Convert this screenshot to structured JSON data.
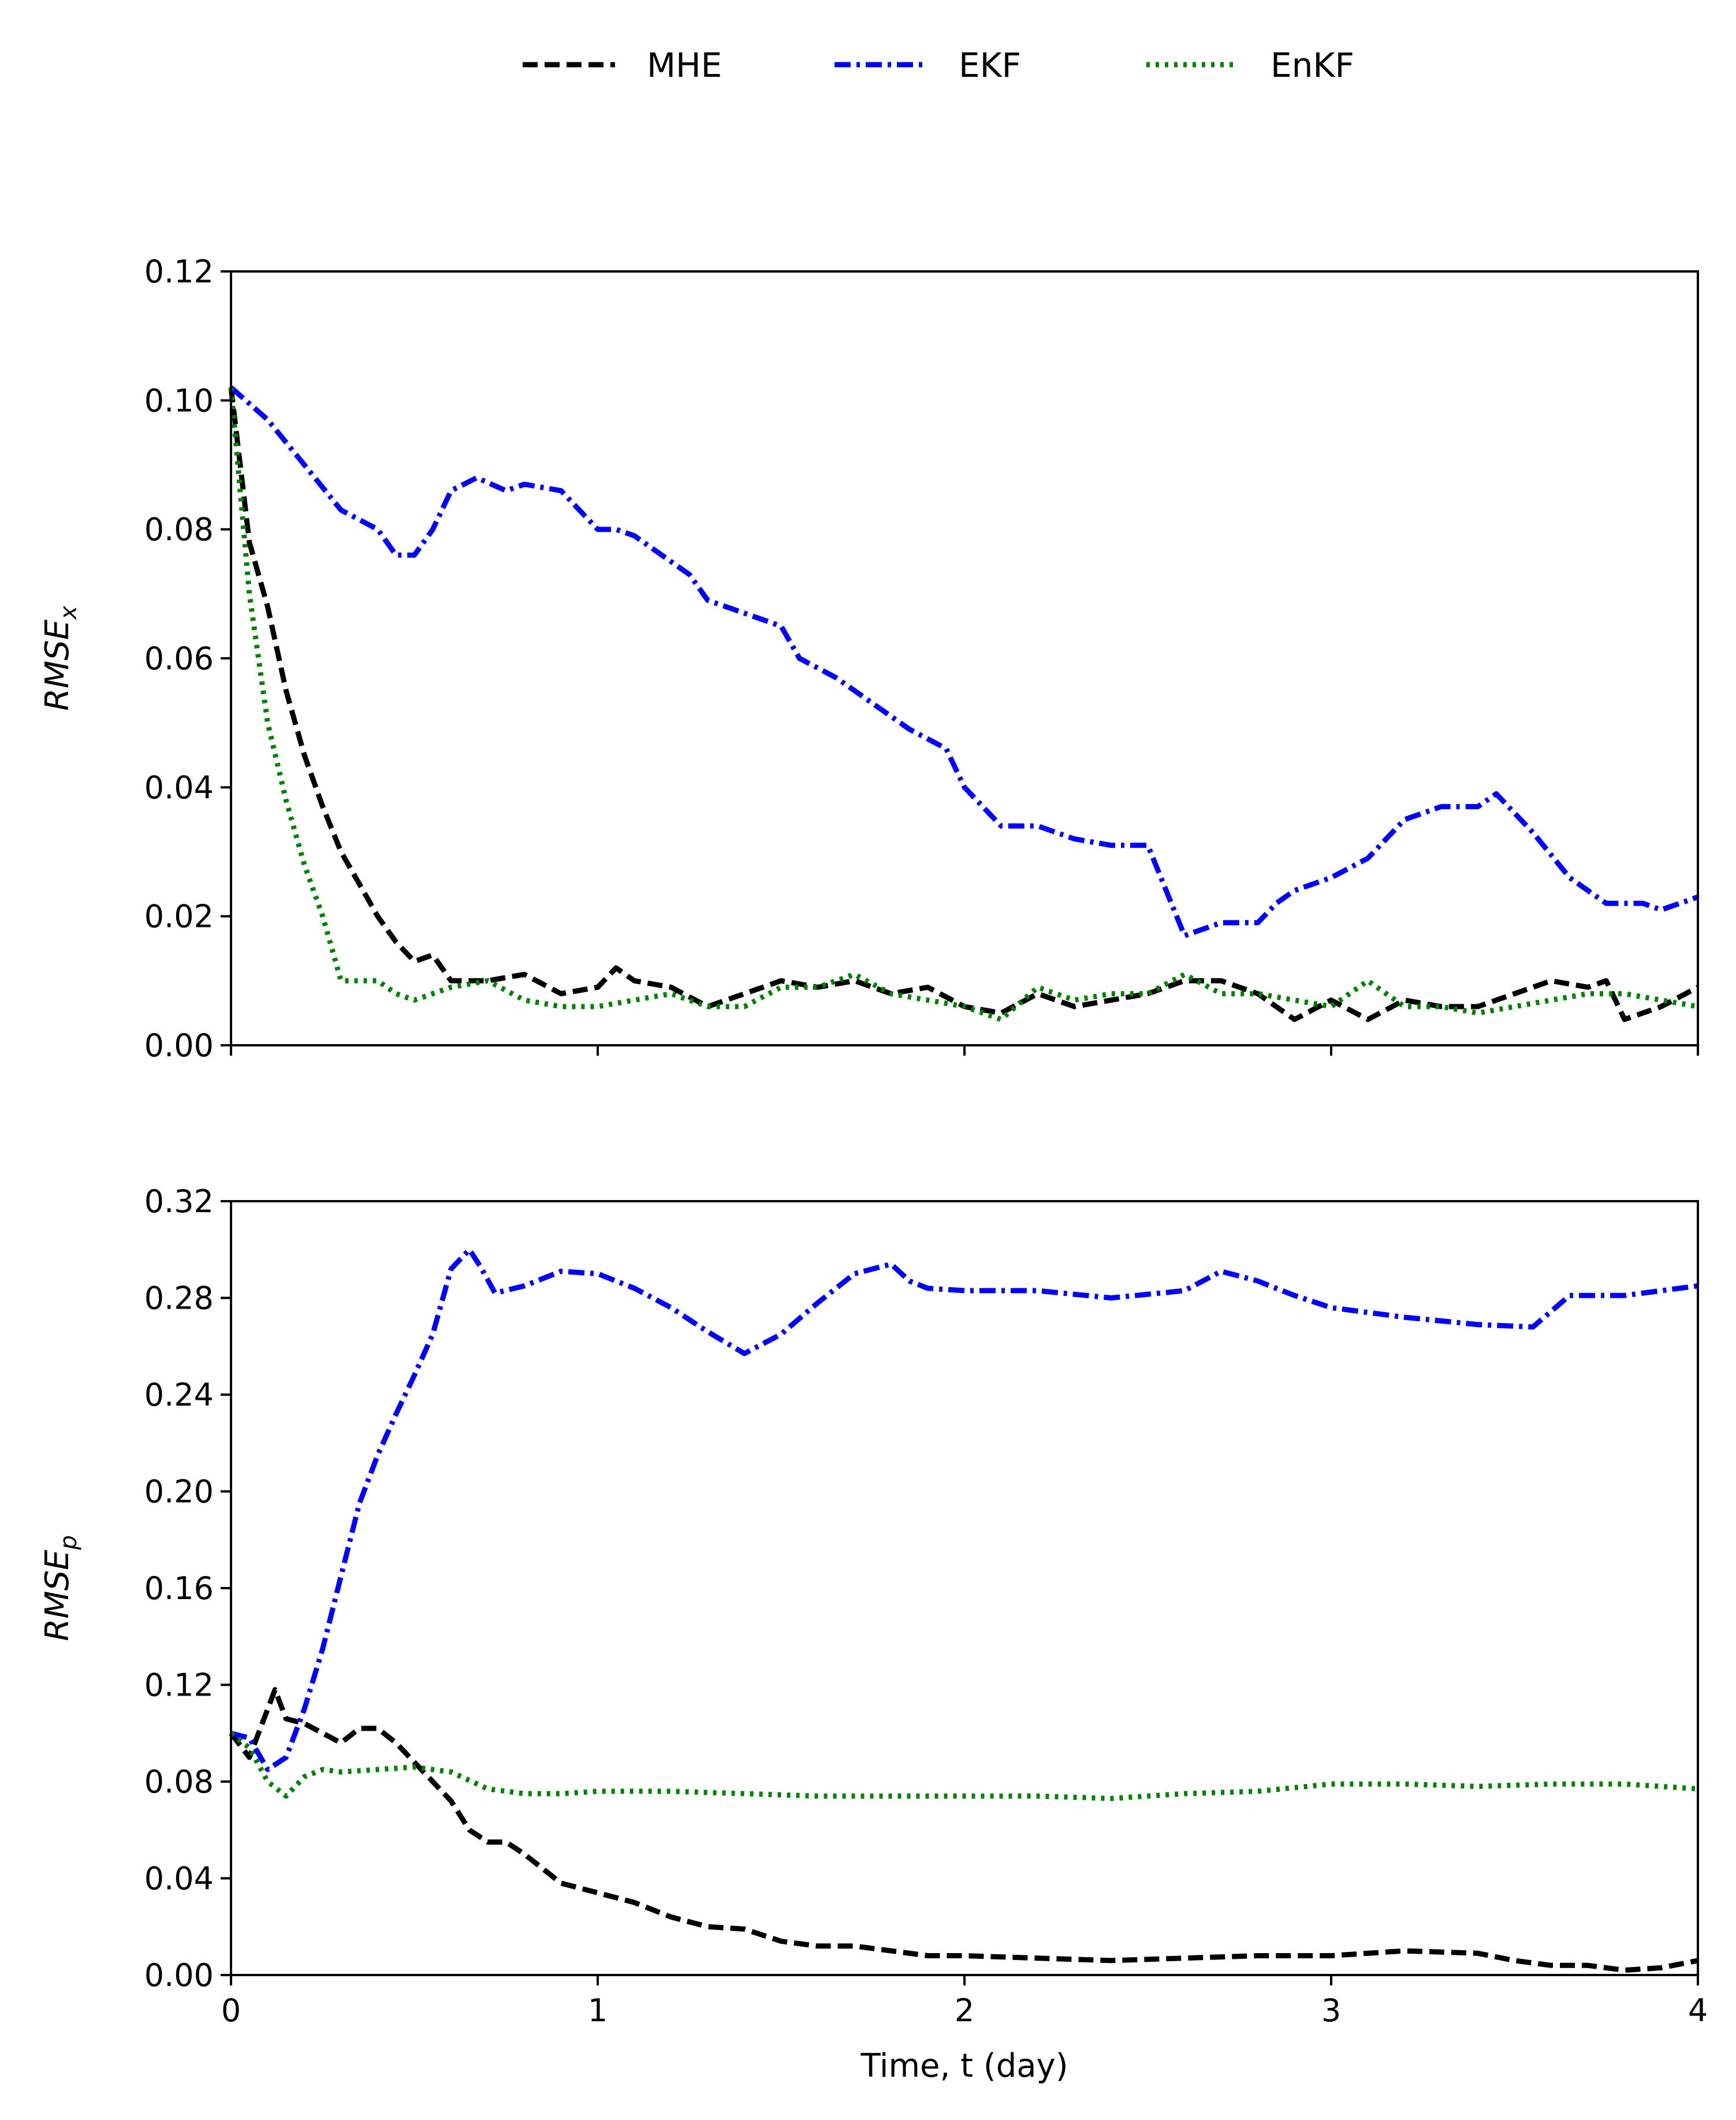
{
  "chart_data": {
    "type": "line",
    "legend": {
      "placement": "top-center",
      "entries": [
        {
          "name": "MHE",
          "color": "#000000",
          "dash": "dashed"
        },
        {
          "name": "EKF",
          "color": "#0000ff",
          "dash": "dash-dot"
        },
        {
          "name": "EnKF",
          "color": "#008000",
          "dash": "dotted"
        }
      ]
    },
    "xlabel": "Time, t (day)",
    "xlim": [
      0,
      4
    ],
    "xticks": [
      0,
      1,
      2,
      3,
      4
    ],
    "panels": [
      {
        "ylabel_base": "RMSE",
        "ylabel_sub": "x",
        "ylim": [
          0,
          0.12
        ],
        "yticks": [
          "0.00",
          "0.02",
          "0.04",
          "0.06",
          "0.08",
          "0.10",
          "0.12"
        ],
        "show_x_tick_labels": false,
        "series": [
          {
            "name": "MHE",
            "color": "#000000",
            "dash": "dashed",
            "x": [
              0,
              0.05,
              0.1,
              0.15,
              0.2,
              0.25,
              0.3,
              0.35,
              0.4,
              0.45,
              0.5,
              0.55,
              0.6,
              0.65,
              0.7,
              0.8,
              0.9,
              1.0,
              1.05,
              1.1,
              1.2,
              1.3,
              1.4,
              1.5,
              1.6,
              1.7,
              1.8,
              1.9,
              2.0,
              2.1,
              2.2,
              2.3,
              2.4,
              2.5,
              2.6,
              2.7,
              2.8,
              2.9,
              3.0,
              3.1,
              3.2,
              3.3,
              3.4,
              3.5,
              3.6,
              3.7,
              3.75,
              3.8,
              3.9,
              4.0
            ],
            "y": [
              0.102,
              0.078,
              0.068,
              0.055,
              0.045,
              0.037,
              0.03,
              0.025,
              0.02,
              0.016,
              0.013,
              0.014,
              0.01,
              0.01,
              0.01,
              0.011,
              0.008,
              0.009,
              0.012,
              0.01,
              0.009,
              0.006,
              0.008,
              0.01,
              0.009,
              0.01,
              0.008,
              0.009,
              0.006,
              0.005,
              0.008,
              0.006,
              0.007,
              0.008,
              0.01,
              0.01,
              0.008,
              0.004,
              0.007,
              0.004,
              0.007,
              0.006,
              0.006,
              0.008,
              0.01,
              0.009,
              0.01,
              0.004,
              0.006,
              0.009
            ]
          },
          {
            "name": "EKF",
            "color": "#0000ff",
            "dash": "dash-dot",
            "x": [
              0,
              0.1,
              0.2,
              0.3,
              0.4,
              0.45,
              0.5,
              0.55,
              0.6,
              0.67,
              0.75,
              0.8,
              0.9,
              1.0,
              1.05,
              1.1,
              1.2,
              1.25,
              1.3,
              1.4,
              1.5,
              1.55,
              1.65,
              1.75,
              1.85,
              1.95,
              2.0,
              2.1,
              2.2,
              2.3,
              2.4,
              2.5,
              2.55,
              2.6,
              2.7,
              2.8,
              2.85,
              2.9,
              3.0,
              3.1,
              3.2,
              3.3,
              3.4,
              3.45,
              3.55,
              3.65,
              3.75,
              3.85,
              3.9,
              4.0
            ],
            "y": [
              0.102,
              0.097,
              0.09,
              0.083,
              0.08,
              0.076,
              0.076,
              0.08,
              0.086,
              0.088,
              0.086,
              0.087,
              0.086,
              0.08,
              0.08,
              0.079,
              0.075,
              0.073,
              0.069,
              0.067,
              0.065,
              0.06,
              0.057,
              0.053,
              0.049,
              0.046,
              0.04,
              0.034,
              0.034,
              0.032,
              0.031,
              0.031,
              0.024,
              0.017,
              0.019,
              0.019,
              0.022,
              0.024,
              0.026,
              0.029,
              0.035,
              0.037,
              0.037,
              0.039,
              0.033,
              0.026,
              0.022,
              0.022,
              0.021,
              0.023
            ]
          },
          {
            "name": "EnKF",
            "color": "#008000",
            "dash": "dotted",
            "x": [
              0,
              0.05,
              0.1,
              0.15,
              0.2,
              0.25,
              0.3,
              0.35,
              0.4,
              0.45,
              0.5,
              0.6,
              0.7,
              0.8,
              0.9,
              1.0,
              1.1,
              1.2,
              1.3,
              1.4,
              1.5,
              1.6,
              1.7,
              1.8,
              1.9,
              2.0,
              2.1,
              2.2,
              2.3,
              2.4,
              2.5,
              2.6,
              2.7,
              2.8,
              2.9,
              3.0,
              3.1,
              3.2,
              3.3,
              3.4,
              3.5,
              3.6,
              3.7,
              3.8,
              3.9,
              4.0
            ],
            "y": [
              0.102,
              0.07,
              0.05,
              0.038,
              0.028,
              0.02,
              0.01,
              0.01,
              0.01,
              0.008,
              0.007,
              0.009,
              0.01,
              0.007,
              0.006,
              0.006,
              0.007,
              0.008,
              0.006,
              0.006,
              0.009,
              0.009,
              0.011,
              0.008,
              0.007,
              0.006,
              0.004,
              0.009,
              0.007,
              0.008,
              0.008,
              0.011,
              0.008,
              0.008,
              0.007,
              0.006,
              0.01,
              0.006,
              0.006,
              0.005,
              0.006,
              0.007,
              0.008,
              0.008,
              0.007,
              0.006
            ]
          }
        ]
      },
      {
        "ylabel_base": "RMSE",
        "ylabel_sub": "p",
        "ylim": [
          0,
          0.32
        ],
        "yticks": [
          "0.00",
          "0.04",
          "0.08",
          "0.12",
          "0.16",
          "0.20",
          "0.24",
          "0.28",
          "0.32"
        ],
        "show_x_tick_labels": true,
        "series": [
          {
            "name": "MHE",
            "color": "#000000",
            "dash": "dashed",
            "x": [
              0,
              0.05,
              0.1,
              0.12,
              0.15,
              0.2,
              0.3,
              0.35,
              0.4,
              0.45,
              0.5,
              0.6,
              0.65,
              0.7,
              0.75,
              0.8,
              0.9,
              1.0,
              1.1,
              1.2,
              1.3,
              1.4,
              1.5,
              1.6,
              1.7,
              1.8,
              1.9,
              2.0,
              2.2,
              2.4,
              2.6,
              2.8,
              3.0,
              3.2,
              3.4,
              3.5,
              3.6,
              3.7,
              3.8,
              3.9,
              4.0
            ],
            "y": [
              0.1,
              0.09,
              0.11,
              0.118,
              0.106,
              0.104,
              0.096,
              0.102,
              0.102,
              0.096,
              0.088,
              0.072,
              0.06,
              0.055,
              0.055,
              0.05,
              0.038,
              0.034,
              0.03,
              0.024,
              0.02,
              0.019,
              0.014,
              0.012,
              0.012,
              0.01,
              0.008,
              0.008,
              0.007,
              0.006,
              0.007,
              0.008,
              0.008,
              0.01,
              0.009,
              0.006,
              0.004,
              0.004,
              0.002,
              0.003,
              0.006
            ]
          },
          {
            "name": "EKF",
            "color": "#0000ff",
            "dash": "dash-dot",
            "x": [
              0,
              0.05,
              0.1,
              0.15,
              0.2,
              0.25,
              0.3,
              0.35,
              0.4,
              0.45,
              0.5,
              0.55,
              0.6,
              0.65,
              0.68,
              0.72,
              0.8,
              0.9,
              1.0,
              1.1,
              1.2,
              1.3,
              1.4,
              1.5,
              1.6,
              1.7,
              1.8,
              1.85,
              1.9,
              2.0,
              2.2,
              2.4,
              2.6,
              2.7,
              2.8,
              2.9,
              3.0,
              3.2,
              3.4,
              3.55,
              3.65,
              3.8,
              4.0
            ],
            "y": [
              0.1,
              0.098,
              0.085,
              0.09,
              0.11,
              0.135,
              0.165,
              0.195,
              0.215,
              0.232,
              0.248,
              0.265,
              0.292,
              0.3,
              0.293,
              0.282,
              0.285,
              0.291,
              0.29,
              0.284,
              0.276,
              0.266,
              0.257,
              0.265,
              0.278,
              0.29,
              0.294,
              0.287,
              0.284,
              0.283,
              0.283,
              0.28,
              0.283,
              0.291,
              0.287,
              0.281,
              0.276,
              0.272,
              0.269,
              0.268,
              0.281,
              0.281,
              0.285
            ]
          },
          {
            "name": "EnKF",
            "color": "#008000",
            "dash": "dotted",
            "x": [
              0,
              0.05,
              0.1,
              0.15,
              0.2,
              0.25,
              0.3,
              0.4,
              0.5,
              0.6,
              0.7,
              0.8,
              0.9,
              1.0,
              1.2,
              1.4,
              1.6,
              1.8,
              2.0,
              2.2,
              2.4,
              2.6,
              2.8,
              3.0,
              3.2,
              3.4,
              3.6,
              3.8,
              4.0
            ],
            "y": [
              0.1,
              0.094,
              0.08,
              0.074,
              0.082,
              0.085,
              0.084,
              0.085,
              0.086,
              0.084,
              0.077,
              0.075,
              0.075,
              0.076,
              0.076,
              0.075,
              0.074,
              0.074,
              0.074,
              0.074,
              0.073,
              0.075,
              0.076,
              0.079,
              0.079,
              0.078,
              0.079,
              0.079,
              0.077
            ]
          }
        ]
      }
    ]
  }
}
